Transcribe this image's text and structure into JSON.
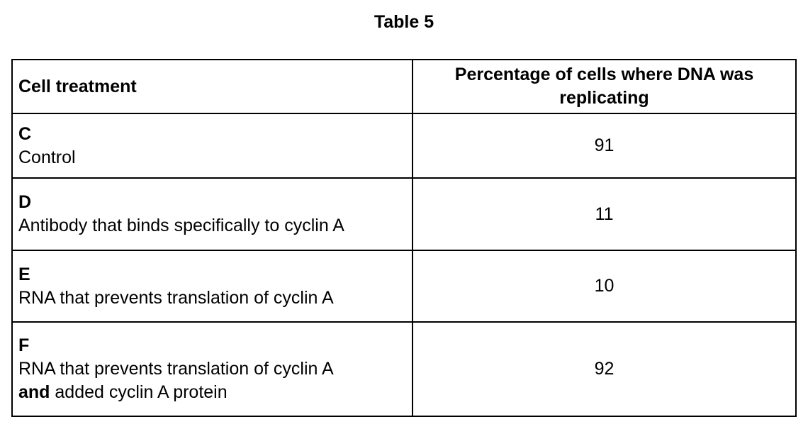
{
  "title": "Table 5",
  "table": {
    "columns": [
      {
        "label": "Cell treatment"
      },
      {
        "label": "Percentage of cells where DNA was replicating"
      }
    ],
    "rows": [
      {
        "letter": "C",
        "description": "Control",
        "value": "91"
      },
      {
        "letter": "D",
        "description": "Antibody that binds specifically to cyclin A",
        "value": "11"
      },
      {
        "letter": "E",
        "description": "RNA that prevents translation of cyclin A",
        "value": "10"
      },
      {
        "letter": "F",
        "description": "RNA that prevents translation of cyclin A",
        "description_line2_bold": "and",
        "description_line2_rest": "added cyclin A protein",
        "value": "92"
      }
    ]
  },
  "chart_data": {
    "type": "table",
    "title": "Table 5",
    "columns": [
      "Cell treatment",
      "Percentage of cells where DNA was replicating"
    ],
    "rows": [
      {
        "treatment": "C — Control",
        "percentage": 91
      },
      {
        "treatment": "D — Antibody that binds specifically to cyclin A",
        "percentage": 11
      },
      {
        "treatment": "E — RNA that prevents translation of cyclin A",
        "percentage": 10
      },
      {
        "treatment": "F — RNA that prevents translation of cyclin A and added cyclin A protein",
        "percentage": 92
      }
    ]
  },
  "colors": {
    "border": "#000000",
    "text": "#000000",
    "background": "#ffffff"
  }
}
